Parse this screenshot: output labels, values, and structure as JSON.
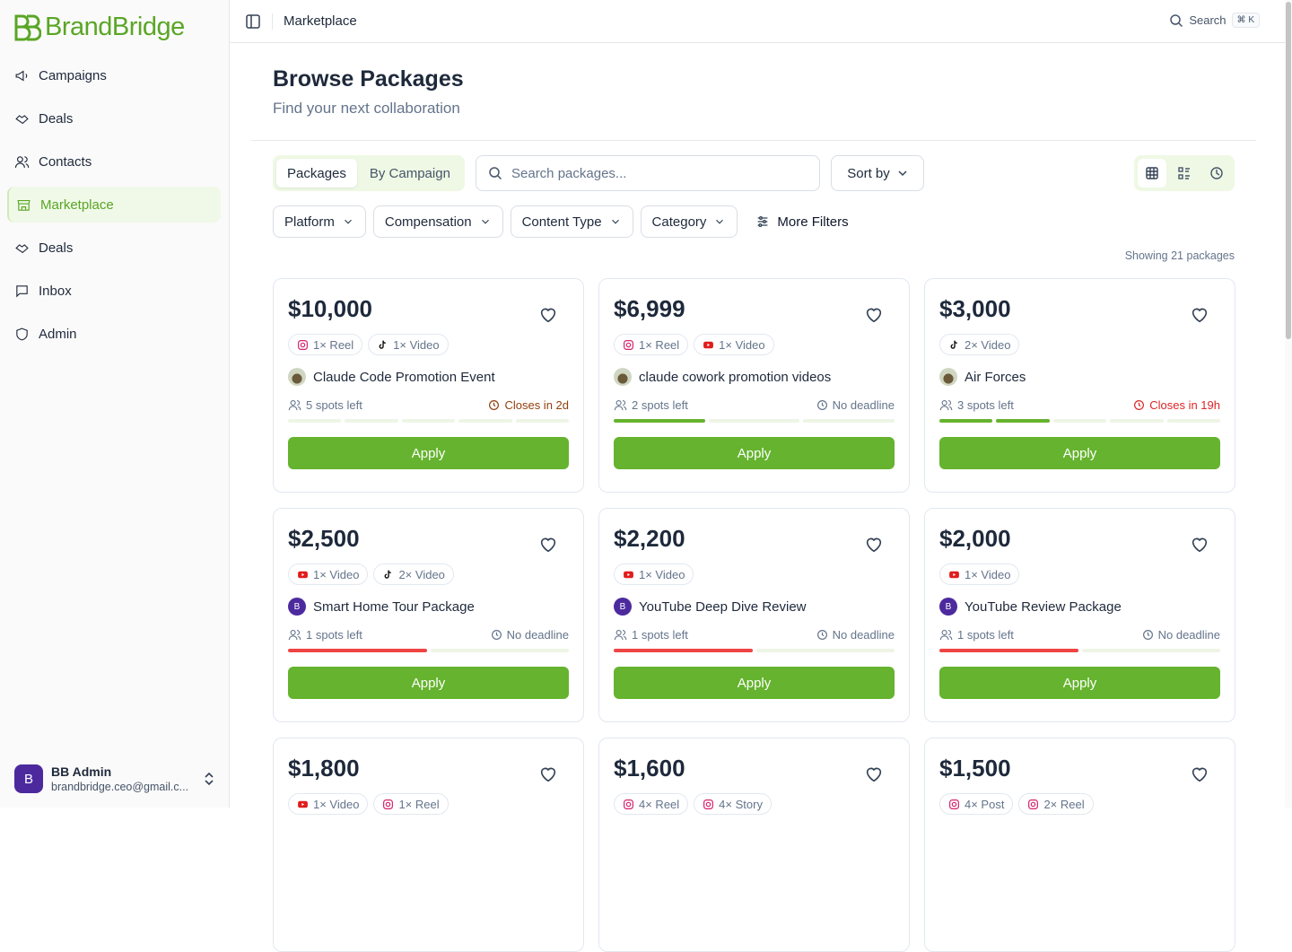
{
  "brand": "BrandBridge",
  "nav": [
    "Campaigns",
    "Deals",
    "Contacts",
    "Marketplace",
    "Deals",
    "Inbox",
    "Admin"
  ],
  "user": {
    "avatar": "B",
    "name": "BB Admin",
    "email": "brandbridge.ceo@gmail.c..."
  },
  "topbar": {
    "breadcrumb": "Marketplace",
    "search": "Search",
    "shortcut": "⌘ K"
  },
  "header": {
    "title": "Browse Packages",
    "subtitle": "Find your next collaboration"
  },
  "tabs": [
    "Packages",
    "By Campaign"
  ],
  "search_placeholder": "Search packages...",
  "sort": "Sort by",
  "filters": [
    "Platform",
    "Compensation",
    "Content Type",
    "Category"
  ],
  "more_filters": "More Filters",
  "count": "Showing 21 packages",
  "apply": "Apply",
  "cards": [
    {
      "price": "$10,000",
      "tags": [
        {
          "icon": "instagram",
          "label": "1× Reel"
        },
        {
          "icon": "tiktok",
          "label": "1× Video"
        }
      ],
      "name": "Claude Code Promotion Event",
      "spots": "5 spots left",
      "deadline": "Closes in 2d",
      "deadline_color": "#92400e",
      "slots": 5,
      "filled": 0,
      "bar_color": "#65b32e"
    },
    {
      "price": "$6,999",
      "tags": [
        {
          "icon": "instagram",
          "label": "1× Reel"
        },
        {
          "icon": "youtube",
          "label": "1× Video"
        }
      ],
      "name": "claude cowork promotion videos",
      "spots": "2 spots left",
      "deadline": "No deadline",
      "deadline_color": "#64748b",
      "slots": 3,
      "filled": 1,
      "bar_color": "#65b32e"
    },
    {
      "price": "$3,000",
      "tags": [
        {
          "icon": "tiktok",
          "label": "2× Video"
        }
      ],
      "name": "Air Forces",
      "spots": "3 spots left",
      "deadline": "Closes in 19h",
      "deadline_color": "#dc2626",
      "slots": 5,
      "filled": 2,
      "bar_color": "#65b32e"
    },
    {
      "price": "$2,500",
      "tags": [
        {
          "icon": "youtube",
          "label": "1× Video"
        },
        {
          "icon": "tiktok",
          "label": "2× Video"
        }
      ],
      "avatar": "B",
      "name": "Smart Home Tour Package",
      "spots": "1 spots left",
      "deadline": "No deadline",
      "deadline_color": "#64748b",
      "slots": 2,
      "filled": 1,
      "bar_color": "#ef4444"
    },
    {
      "price": "$2,200",
      "tags": [
        {
          "icon": "youtube",
          "label": "1× Video"
        }
      ],
      "avatar": "B",
      "name": "YouTube Deep Dive Review",
      "spots": "1 spots left",
      "deadline": "No deadline",
      "deadline_color": "#64748b",
      "slots": 2,
      "filled": 1,
      "bar_color": "#ef4444"
    },
    {
      "price": "$2,000",
      "tags": [
        {
          "icon": "youtube",
          "label": "1× Video"
        }
      ],
      "avatar": "B",
      "name": "YouTube Review Package",
      "spots": "1 spots left",
      "deadline": "No deadline",
      "deadline_color": "#64748b",
      "slots": 2,
      "filled": 1,
      "bar_color": "#ef4444"
    },
    {
      "price": "$1,800",
      "tags": [
        {
          "icon": "youtube",
          "label": "1× Video"
        },
        {
          "icon": "instagram",
          "label": "1× Reel"
        }
      ]
    },
    {
      "price": "$1,600",
      "tags": [
        {
          "icon": "instagram",
          "label": "4× Reel"
        },
        {
          "icon": "instagram",
          "label": "4× Story"
        }
      ]
    },
    {
      "price": "$1,500",
      "tags": [
        {
          "icon": "instagram",
          "label": "4× Post"
        },
        {
          "icon": "instagram",
          "label": "2× Reel"
        }
      ]
    }
  ]
}
